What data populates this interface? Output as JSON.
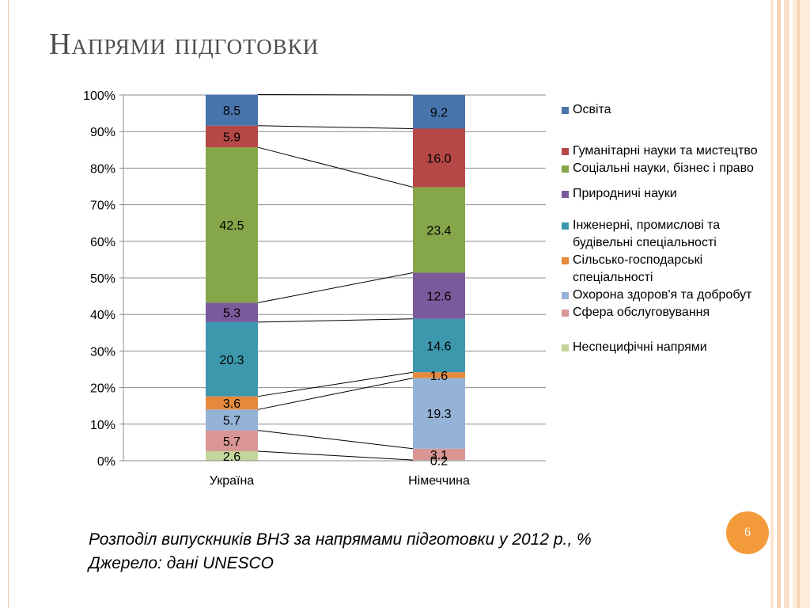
{
  "slide": {
    "title": "Напрями підготовки",
    "page_number": "6",
    "caption_line1": "Розподіл випускників ВНЗ за напрямами підготовки у 2012 р., %",
    "caption_line2": "Джерело: дані UNESCO"
  },
  "colors": {
    "accent_orange": "#f39b3a",
    "title": "#4d4d4d"
  },
  "chart_data": {
    "type": "bar",
    "stacked": true,
    "percent": true,
    "categories": [
      "Україна",
      "Німеччина"
    ],
    "yticks": [
      "0%",
      "10%",
      "20%",
      "30%",
      "40%",
      "50%",
      "60%",
      "70%",
      "80%",
      "90%",
      "100%"
    ],
    "ylim": [
      0,
      100
    ],
    "grid": true,
    "legend_position": "right",
    "series": [
      {
        "name": "Неспецифічні напрями",
        "color": "#c3d69b",
        "values": [
          2.6,
          0.2
        ],
        "labels": [
          "2.6",
          "0.2"
        ]
      },
      {
        "name": "Сфера обслуговування",
        "color": "#d99694",
        "values": [
          5.7,
          3.1
        ],
        "labels": [
          "5.7",
          "3.1"
        ]
      },
      {
        "name": "Охорона здоров'я та добробут",
        "color": "#95b3d7",
        "values": [
          5.7,
          19.3
        ],
        "labels": [
          "5.7",
          "19.3"
        ]
      },
      {
        "name": "Сільсько-господарські спеціальності",
        "color": "#e6893d",
        "values": [
          3.6,
          1.6
        ],
        "labels": [
          "3.6",
          "1.6"
        ]
      },
      {
        "name": "Інженерні, промислові та будівельні спеціальності",
        "color": "#3d98ae",
        "values": [
          20.3,
          14.6
        ],
        "labels": [
          "20.3",
          "14.6"
        ]
      },
      {
        "name": "Природничі науки",
        "color": "#7b5a9c",
        "values": [
          5.3,
          12.6
        ],
        "labels": [
          "5.3",
          "12.6"
        ]
      },
      {
        "name": "Соціальні науки, бізнес і право",
        "color": "#86a64a",
        "values": [
          42.5,
          23.4
        ],
        "labels": [
          "42.5",
          "23.4"
        ]
      },
      {
        "name": "Гуманітарні науки та мистецтво",
        "color": "#b54846",
        "values": [
          5.9,
          16.0
        ],
        "labels": [
          "5.9",
          "16.0"
        ]
      },
      {
        "name": "Освіта",
        "color": "#4874ac",
        "values": [
          8.5,
          9.2
        ],
        "labels": [
          "8.5",
          "9.2"
        ]
      }
    ],
    "legend_order": [
      "Освіта",
      "Гуманітарні науки та мистецтво",
      "Соціальні науки, бізнес і право",
      "Природничі науки",
      "Інженерні, промислові та будівельні спеціальності",
      "Сільсько-господарські спеціальності",
      "Охорона здоров'я та добробут",
      "Сфера обслуговування",
      "Неспецифічні напрями"
    ]
  }
}
